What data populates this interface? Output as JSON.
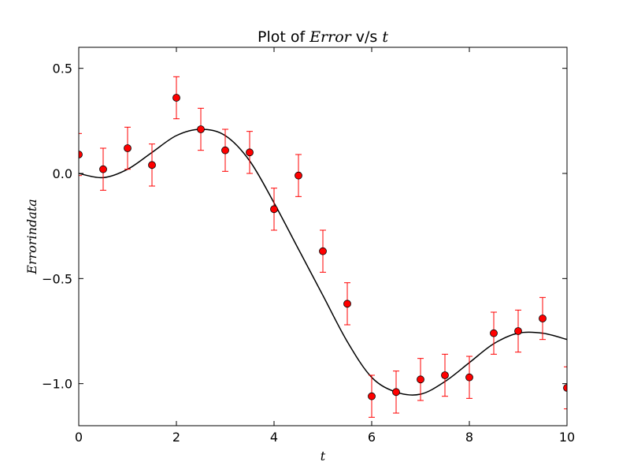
{
  "chart_data": {
    "type": "scatter",
    "title": {
      "prefix": "Plot of ",
      "var1": "Error",
      "middle": " v/s ",
      "var2": "t"
    },
    "xlabel": "t",
    "ylabel": "Errorindata",
    "xlim": [
      0,
      10
    ],
    "ylim": [
      -1.2,
      0.6
    ],
    "x_ticks": [
      0,
      2,
      4,
      6,
      8,
      10
    ],
    "x_tick_labels": [
      "0",
      "2",
      "4",
      "6",
      "8",
      "10"
    ],
    "y_ticks": [
      0.5,
      0.0,
      -0.5,
      -1.0
    ],
    "y_tick_labels": [
      "0.5",
      "0.0",
      "−0.5",
      "−1.0"
    ],
    "grid": false,
    "series": [
      {
        "kind": "errorbar",
        "marker_color": "#ff0000",
        "errorbar_color": "#ff0000",
        "x": [
          0,
          0.5,
          1,
          1.5,
          2,
          2.5,
          3,
          3.5,
          4,
          4.5,
          5,
          5.5,
          6,
          6.5,
          7,
          7.5,
          8,
          8.5,
          9,
          9.5,
          10
        ],
        "y": [
          0.09,
          0.02,
          0.12,
          0.04,
          0.36,
          0.21,
          0.11,
          0.1,
          -0.17,
          -0.01,
          -0.37,
          -0.62,
          -1.06,
          -1.04,
          -0.98,
          -0.96,
          -0.97,
          -0.76,
          -0.75,
          -0.69,
          -1.02
        ],
        "yerr": 0.1
      },
      {
        "kind": "line",
        "color": "#000000",
        "x": [
          0,
          0.5,
          1,
          1.5,
          2,
          2.5,
          3,
          3.5,
          4,
          4.5,
          5,
          5.5,
          6,
          6.5,
          7,
          7.5,
          8,
          8.5,
          9,
          9.5,
          10
        ],
        "y": [
          0.0,
          -0.02,
          0.02,
          0.1,
          0.18,
          0.21,
          0.18,
          0.06,
          -0.14,
          -0.36,
          -0.58,
          -0.8,
          -0.97,
          -1.04,
          -1.05,
          -0.99,
          -0.9,
          -0.81,
          -0.76,
          -0.76,
          -0.79
        ]
      }
    ]
  }
}
